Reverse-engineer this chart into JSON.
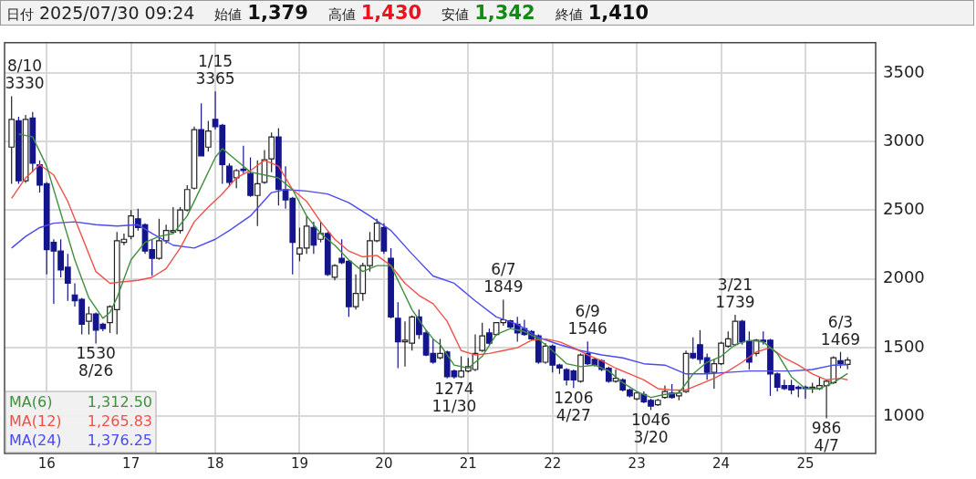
{
  "chart_data": {
    "type": "candlestick",
    "x": [
      "2015-08",
      "2015-09",
      "2015-10",
      "2015-11",
      "2015-12",
      "2016-01",
      "2016-02",
      "2016-03",
      "2016-04",
      "2016-05",
      "2016-06",
      "2016-07",
      "2016-08",
      "2016-09",
      "2016-10",
      "2016-11",
      "2016-12",
      "2017-01",
      "2017-02",
      "2017-03",
      "2017-04",
      "2017-05",
      "2017-06",
      "2017-07",
      "2017-08",
      "2017-09",
      "2017-10",
      "2017-11",
      "2017-12",
      "2018-01",
      "2018-02",
      "2018-03",
      "2018-04",
      "2018-05",
      "2018-06",
      "2018-07",
      "2018-08",
      "2018-09",
      "2018-10",
      "2018-11",
      "2018-12",
      "2019-01",
      "2019-02",
      "2019-03",
      "2019-04",
      "2019-05",
      "2019-06",
      "2019-07",
      "2019-08",
      "2019-09",
      "2019-10",
      "2019-11",
      "2019-12",
      "2020-01",
      "2020-02",
      "2020-03",
      "2020-04",
      "2020-05",
      "2020-06",
      "2020-07",
      "2020-08",
      "2020-09",
      "2020-10",
      "2020-11",
      "2020-12",
      "2021-01",
      "2021-02",
      "2021-03",
      "2021-04",
      "2021-05",
      "2021-06",
      "2021-07",
      "2021-08",
      "2021-09",
      "2021-10",
      "2021-11",
      "2021-12",
      "2022-01",
      "2022-02",
      "2022-03",
      "2022-04",
      "2022-05",
      "2022-06",
      "2022-07",
      "2022-08",
      "2022-09",
      "2022-10",
      "2022-11",
      "2022-12",
      "2023-01",
      "2023-02",
      "2023-03",
      "2023-04",
      "2023-05",
      "2023-06",
      "2023-07",
      "2023-08",
      "2023-09",
      "2023-10",
      "2023-11",
      "2023-12",
      "2024-01",
      "2024-02",
      "2024-03",
      "2024-04",
      "2024-05",
      "2024-06",
      "2024-07",
      "2024-08",
      "2024-09",
      "2024-10",
      "2024-11",
      "2024-12",
      "2025-01",
      "2025-02",
      "2025-03",
      "2025-04",
      "2025-05",
      "2025-06",
      "2025-07"
    ],
    "ohlc": [
      [
        2960,
        3330,
        2693,
        3162
      ],
      [
        3151,
        3180,
        2693,
        2715
      ],
      [
        2715,
        3194,
        2700,
        3162
      ],
      [
        3172,
        3215,
        2778,
        2842
      ],
      [
        2832,
        2864,
        2630,
        2683
      ],
      [
        2693,
        2704,
        2033,
        2214
      ],
      [
        2267,
        2289,
        1820,
        2203
      ],
      [
        2203,
        2289,
        2012,
        2065
      ],
      [
        2086,
        2182,
        1841,
        1969
      ],
      [
        1884,
        1969,
        1799,
        1841
      ],
      [
        1852,
        1863,
        1596,
        1671
      ],
      [
        1692,
        1799,
        1596,
        1746
      ],
      [
        1746,
        1756,
        1530,
        1628
      ],
      [
        1671,
        1682,
        1620,
        1639
      ],
      [
        1682,
        1809,
        1607,
        1799
      ],
      [
        1777,
        2342,
        1596,
        2278
      ],
      [
        2267,
        2331,
        2246,
        2289
      ],
      [
        2310,
        2502,
        2289,
        2459
      ],
      [
        2438,
        2512,
        2353,
        2374
      ],
      [
        2395,
        2406,
        2182,
        2203
      ],
      [
        2214,
        2289,
        2022,
        2150
      ],
      [
        2150,
        2438,
        2140,
        2278
      ],
      [
        2278,
        2395,
        2257,
        2353
      ],
      [
        2342,
        2523,
        2331,
        2353
      ],
      [
        2353,
        2523,
        2331,
        2502
      ],
      [
        2502,
        2683,
        2491,
        2651
      ],
      [
        2661,
        3109,
        2651,
        3087
      ],
      [
        3087,
        3279,
        2896,
        2896
      ],
      [
        2960,
        3151,
        2928,
        3077
      ],
      [
        3162,
        3365,
        3087,
        3109
      ],
      [
        3119,
        3130,
        2693,
        2832
      ],
      [
        2821,
        2842,
        2672,
        2704
      ],
      [
        2736,
        2800,
        2661,
        2789
      ],
      [
        2800,
        2970,
        2768,
        2789
      ],
      [
        2768,
        2885,
        2598,
        2608
      ],
      [
        2608,
        2864,
        2385,
        2693
      ],
      [
        2704,
        2938,
        2693,
        2868
      ],
      [
        2874,
        3066,
        2778,
        3034
      ],
      [
        3034,
        3098,
        2534,
        2651
      ],
      [
        2651,
        2821,
        2512,
        2576
      ],
      [
        2587,
        2598,
        2033,
        2267
      ],
      [
        2182,
        2374,
        2129,
        2225
      ],
      [
        2225,
        2459,
        2182,
        2385
      ],
      [
        2374,
        2417,
        2182,
        2246
      ],
      [
        2289,
        2417,
        2267,
        2331
      ],
      [
        2331,
        2342,
        2022,
        2033
      ],
      [
        2012,
        2108,
        1991,
        2097
      ],
      [
        2150,
        2289,
        2108,
        2118
      ],
      [
        2129,
        2140,
        1724,
        1799
      ],
      [
        1799,
        2033,
        1777,
        1895
      ],
      [
        1895,
        2118,
        1841,
        2097
      ],
      [
        2097,
        2342,
        2054,
        2278
      ],
      [
        2278,
        2438,
        2267,
        2406
      ],
      [
        2374,
        2406,
        2182,
        2203
      ],
      [
        2150,
        2225,
        1714,
        1724
      ],
      [
        1714,
        1831,
        1351,
        1543
      ],
      [
        1543,
        1692,
        1362,
        1554
      ],
      [
        1533,
        1735,
        1479,
        1724
      ],
      [
        1724,
        1777,
        1564,
        1596
      ],
      [
        1607,
        1628,
        1437,
        1447
      ],
      [
        1458,
        1564,
        1383,
        1394
      ],
      [
        1426,
        1564,
        1415,
        1458
      ],
      [
        1469,
        1479,
        1277,
        1288
      ],
      [
        1330,
        1341,
        1274,
        1288
      ],
      [
        1288,
        1437,
        1280,
        1330
      ],
      [
        1330,
        1426,
        1320,
        1362
      ],
      [
        1341,
        1596,
        1330,
        1458
      ],
      [
        1479,
        1682,
        1469,
        1586
      ],
      [
        1607,
        1639,
        1522,
        1533
      ],
      [
        1596,
        1682,
        1586,
        1682
      ],
      [
        1682,
        1849,
        1660,
        1703
      ],
      [
        1696,
        1703,
        1639,
        1650
      ],
      [
        1671,
        1724,
        1543,
        1607
      ],
      [
        1639,
        1703,
        1586,
        1596
      ],
      [
        1618,
        1628,
        1554,
        1564
      ],
      [
        1586,
        1596,
        1383,
        1394
      ],
      [
        1394,
        1533,
        1383,
        1511
      ],
      [
        1511,
        1522,
        1320,
        1373
      ],
      [
        1373,
        1383,
        1309,
        1351
      ],
      [
        1341,
        1351,
        1224,
        1266
      ],
      [
        1330,
        1341,
        1206,
        1266
      ],
      [
        1256,
        1458,
        1245,
        1447
      ],
      [
        1458,
        1546,
        1373,
        1383
      ],
      [
        1415,
        1426,
        1362,
        1373
      ],
      [
        1405,
        1415,
        1330,
        1341
      ],
      [
        1351,
        1362,
        1245,
        1256
      ],
      [
        1256,
        1341,
        1245,
        1277
      ],
      [
        1266,
        1277,
        1181,
        1192
      ],
      [
        1192,
        1202,
        1138,
        1149
      ],
      [
        1128,
        1181,
        1117,
        1170
      ],
      [
        1160,
        1181,
        1096,
        1106
      ],
      [
        1117,
        1128,
        1046,
        1075
      ],
      [
        1085,
        1128,
        1075,
        1117
      ],
      [
        1138,
        1224,
        1128,
        1181
      ],
      [
        1170,
        1234,
        1128,
        1138
      ],
      [
        1149,
        1192,
        1117,
        1170
      ],
      [
        1181,
        1479,
        1170,
        1458
      ],
      [
        1458,
        1575,
        1415,
        1426
      ],
      [
        1522,
        1628,
        1383,
        1415
      ],
      [
        1426,
        1458,
        1266,
        1320
      ],
      [
        1320,
        1415,
        1202,
        1383
      ],
      [
        1383,
        1543,
        1373,
        1533
      ],
      [
        1511,
        1618,
        1500,
        1564
      ],
      [
        1522,
        1739,
        1511,
        1692
      ],
      [
        1692,
        1703,
        1522,
        1543
      ],
      [
        1543,
        1618,
        1341,
        1394
      ],
      [
        1458,
        1564,
        1437,
        1554
      ],
      [
        1554,
        1618,
        1522,
        1543
      ],
      [
        1554,
        1564,
        1149,
        1309
      ],
      [
        1309,
        1320,
        1181,
        1213
      ],
      [
        1224,
        1266,
        1192,
        1202
      ],
      [
        1224,
        1266,
        1160,
        1192
      ],
      [
        1213,
        1224,
        1138,
        1202
      ],
      [
        1213,
        1224,
        1128,
        1202
      ],
      [
        1202,
        1245,
        1170,
        1213
      ],
      [
        1202,
        1288,
        1192,
        1224
      ],
      [
        1224,
        1266,
        986,
        1256
      ],
      [
        1245,
        1437,
        1234,
        1426
      ],
      [
        1405,
        1469,
        1351,
        1383
      ],
      [
        1379,
        1430,
        1342,
        1410
      ]
    ],
    "series": [
      {
        "type": "line",
        "name": "MA(6)",
        "color": "#3f8f3f",
        "x": [
          "2015-09",
          "2015-11",
          "2016-01",
          "2016-03",
          "2016-05",
          "2016-07",
          "2016-09",
          "2016-10",
          "2016-11",
          "2017-01",
          "2017-03",
          "2017-05",
          "2017-07",
          "2017-09",
          "2017-11",
          "2018-01",
          "2018-02",
          "2018-04",
          "2018-06",
          "2018-08",
          "2018-10",
          "2018-11",
          "2018-12",
          "2019-02",
          "2019-04",
          "2019-06",
          "2019-08",
          "2019-10",
          "2019-12",
          "2020-02",
          "2020-03",
          "2020-05",
          "2020-07",
          "2020-08",
          "2020-09",
          "2020-11",
          "2021-01",
          "2021-03",
          "2021-05",
          "2021-07",
          "2021-09",
          "2021-11",
          "2022-01",
          "2022-03",
          "2022-05",
          "2022-07",
          "2022-09",
          "2022-11",
          "2023-01",
          "2023-03",
          "2023-05",
          "2023-07",
          "2023-09",
          "2023-11",
          "2024-01",
          "2024-03",
          "2024-05",
          "2024-07",
          "2024-09",
          "2024-11",
          "2025-01",
          "2025-03",
          "2025-05",
          "2025-07"
        ],
        "values": [
          3055,
          3034,
          2821,
          2480,
          2140,
          1863,
          1714,
          1756,
          1863,
          2140,
          2267,
          2310,
          2331,
          2459,
          2672,
          2885,
          2949,
          2864,
          2778,
          2757,
          2736,
          2693,
          2651,
          2459,
          2331,
          2246,
          2140,
          2054,
          2097,
          2097,
          1990,
          1777,
          1628,
          1564,
          1522,
          1373,
          1351,
          1437,
          1596,
          1639,
          1618,
          1564,
          1479,
          1383,
          1362,
          1373,
          1330,
          1245,
          1181,
          1138,
          1160,
          1170,
          1309,
          1394,
          1437,
          1522,
          1554,
          1543,
          1458,
          1288,
          1202,
          1202,
          1245,
          1312
        ]
      },
      {
        "type": "line",
        "name": "MA(12)",
        "color": "#f0504a",
        "x": [
          "2015-08",
          "2015-10",
          "2015-12",
          "2016-02",
          "2016-04",
          "2016-06",
          "2016-08",
          "2016-10",
          "2016-12",
          "2017-02",
          "2017-04",
          "2017-06",
          "2017-08",
          "2017-10",
          "2017-12",
          "2018-02",
          "2018-04",
          "2018-06",
          "2018-08",
          "2018-10",
          "2018-12",
          "2019-02",
          "2019-04",
          "2019-06",
          "2019-08",
          "2019-10",
          "2019-12",
          "2020-02",
          "2020-04",
          "2020-06",
          "2020-08",
          "2020-10",
          "2020-12",
          "2021-02",
          "2021-04",
          "2021-06",
          "2021-08",
          "2021-10",
          "2021-12",
          "2022-02",
          "2022-04",
          "2022-06",
          "2022-08",
          "2022-10",
          "2022-12",
          "2023-02",
          "2023-04",
          "2023-06",
          "2023-08",
          "2023-10",
          "2023-12",
          "2024-02",
          "2024-04",
          "2024-06",
          "2024-08",
          "2024-10",
          "2024-12",
          "2025-02",
          "2025-04",
          "2025-06",
          "2025-07"
        ],
        "values": [
          2587,
          2736,
          2832,
          2757,
          2565,
          2310,
          2054,
          1969,
          1980,
          1990,
          2012,
          2076,
          2225,
          2416,
          2523,
          2620,
          2736,
          2789,
          2864,
          2821,
          2651,
          2565,
          2416,
          2289,
          2203,
          2161,
          2172,
          2097,
          1969,
          1880,
          1820,
          1692,
          1479,
          1447,
          1458,
          1479,
          1500,
          1554,
          1564,
          1543,
          1500,
          1447,
          1405,
          1351,
          1309,
          1266,
          1202,
          1192,
          1192,
          1234,
          1277,
          1330,
          1394,
          1469,
          1500,
          1426,
          1373,
          1309,
          1266,
          1277,
          1266
        ]
      },
      {
        "type": "line",
        "name": "MA(24)",
        "color": "#4a4af0",
        "x": [
          "2015-08",
          "2015-10",
          "2015-12",
          "2016-02",
          "2016-05",
          "2016-08",
          "2016-11",
          "2017-02",
          "2017-04",
          "2017-07",
          "2017-10",
          "2018-01",
          "2018-03",
          "2018-06",
          "2018-09",
          "2018-11",
          "2019-02",
          "2019-05",
          "2019-08",
          "2019-11",
          "2020-02",
          "2020-05",
          "2020-08",
          "2020-11",
          "2021-02",
          "2021-05",
          "2021-08",
          "2021-11",
          "2022-02",
          "2022-05",
          "2022-08",
          "2022-11",
          "2023-02",
          "2023-05",
          "2023-08",
          "2023-11",
          "2024-02",
          "2024-05",
          "2024-08",
          "2024-11",
          "2025-02",
          "2025-05",
          "2025-07"
        ],
        "values": [
          2225,
          2310,
          2374,
          2406,
          2416,
          2395,
          2385,
          2395,
          2331,
          2246,
          2225,
          2289,
          2353,
          2459,
          2629,
          2651,
          2640,
          2619,
          2555,
          2459,
          2353,
          2182,
          2022,
          1969,
          1841,
          1724,
          1671,
          1575,
          1522,
          1479,
          1447,
          1426,
          1383,
          1373,
          1309,
          1309,
          1320,
          1330,
          1330,
          1330,
          1341,
          1373,
          1376
        ]
      }
    ],
    "xlim": [
      "2015-07",
      "2025-11"
    ],
    "xticks": [
      {
        "value": "2016-01",
        "label": "16"
      },
      {
        "value": "2017-01",
        "label": "17"
      },
      {
        "value": "2018-01",
        "label": "18"
      },
      {
        "value": "2019-01",
        "label": "19"
      },
      {
        "value": "2020-01",
        "label": "20"
      },
      {
        "value": "2021-01",
        "label": "21"
      },
      {
        "value": "2022-01",
        "label": "22"
      },
      {
        "value": "2023-01",
        "label": "23"
      },
      {
        "value": "2024-01",
        "label": "24"
      },
      {
        "value": "2025-01",
        "label": "25"
      }
    ],
    "ylim": [
      730,
      3720
    ],
    "yticks": [
      1000,
      1500,
      2000,
      2500,
      3000,
      3500
    ],
    "grid": true,
    "legend": "bottom left",
    "marker": "none",
    "annotations": [
      "日付",
      "2025/07/30 09:24",
      "始値",
      "1,379",
      "高値",
      "1,430",
      "安値",
      "1,342",
      "終値",
      "1,410",
      "1,312.50",
      "1,265.83",
      "1,376.25",
      {
        "text": "8/10\n3330",
        "x": "2015-08",
        "y": 3330
      },
      {
        "text": "1530\n8/26",
        "x": "2016-08",
        "y": 1530
      },
      {
        "text": "1/15\n3365",
        "x": "2018-01",
        "y": 3365
      },
      {
        "text": "1274\n11/30",
        "x": "2020-11",
        "y": 1274
      },
      {
        "text": "6/7\n1849",
        "x": "2021-06",
        "y": 1849
      },
      {
        "text": "1206\n4/27",
        "x": "2022-04",
        "y": 1206
      },
      {
        "text": "6/9\n1546",
        "x": "2022-06",
        "y": 1546
      },
      {
        "text": "1046\n3/20",
        "x": "2023-03",
        "y": 1046
      },
      {
        "text": "3/21\n1739",
        "x": "2024-03",
        "y": 1739
      },
      {
        "text": "986\n4/7",
        "x": "2025-04",
        "y": 986
      },
      {
        "text": "6/3\n1469",
        "x": "2025-06",
        "y": 1469
      }
    ]
  }
}
